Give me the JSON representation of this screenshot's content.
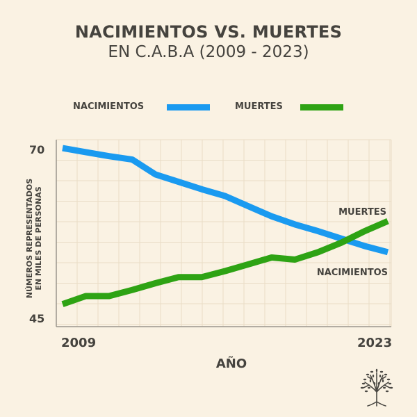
{
  "chart_data": {
    "type": "line",
    "title": "NACIMIENTOS VS. MUERTES",
    "subtitle": "EN C.A.B.A (2009 - 2023)",
    "xlabel": "AÑO",
    "ylabel_line1": "NÚMEROS REPRESENTADOS",
    "ylabel_line2": "EN MILES DE PERSONAS",
    "x": [
      2009,
      2010,
      2011,
      2012,
      2013,
      2014,
      2015,
      2016,
      2017,
      2018,
      2019,
      2020,
      2021,
      2022,
      2023
    ],
    "xlim": [
      2009,
      2023
    ],
    "ylim": [
      45,
      70
    ],
    "x_tick_labels": [
      "2009",
      "2023"
    ],
    "y_tick_labels": [
      "70",
      "45"
    ],
    "grid": true,
    "legend_position": "top",
    "series": [
      {
        "name": "NACIMIENTOS",
        "color": "#1a9af0",
        "values": [
          70.3,
          69.7,
          69.1,
          68.6,
          66.4,
          65.3,
          64.2,
          63.2,
          61.7,
          60.2,
          59.0,
          58.0,
          56.9,
          55.8,
          54.9
        ]
      },
      {
        "name": "MUERTES",
        "color": "#2ea314",
        "values": [
          47.2,
          48.4,
          48.4,
          49.3,
          50.3,
          51.2,
          51.2,
          52.1,
          53.1,
          54.1,
          53.8,
          54.9,
          56.3,
          58.0,
          59.5
        ]
      }
    ],
    "annotations": [
      {
        "text": "MUERTES",
        "series": "MUERTES"
      },
      {
        "text": "NACIMIENTOS",
        "series": "NACIMIENTOS"
      }
    ]
  },
  "branding": {
    "logo_icon": "tree-icon"
  }
}
